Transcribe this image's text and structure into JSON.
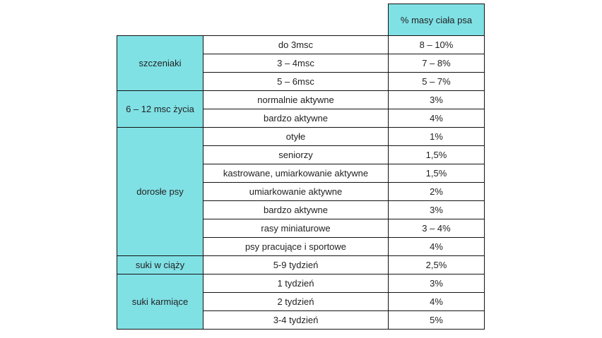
{
  "header": {
    "value_column": "% masy ciała psa"
  },
  "colors": {
    "group_cell": "#80e1e5",
    "border": "#111111"
  },
  "groups": [
    {
      "label": "szczeniaki",
      "rows": [
        {
          "condition": "do 3msc",
          "value": "8 – 10%"
        },
        {
          "condition": "3 – 4msc",
          "value": "7 – 8%"
        },
        {
          "condition": "5 – 6msc",
          "value": "5 – 7%"
        }
      ]
    },
    {
      "label": "6 – 12 msc życia",
      "rows": [
        {
          "condition": "normalnie aktywne",
          "value": "3%"
        },
        {
          "condition": "bardzo aktywne",
          "value": "4%"
        }
      ]
    },
    {
      "label": "dorosłe psy",
      "rows": [
        {
          "condition": "otyłe",
          "value": "1%"
        },
        {
          "condition": "seniorzy",
          "value": "1,5%"
        },
        {
          "condition": "kastrowane, umiarkowanie aktywne",
          "value": "1,5%"
        },
        {
          "condition": "umiarkowanie aktywne",
          "value": "2%"
        },
        {
          "condition": "bardzo aktywne",
          "value": "3%"
        },
        {
          "condition": "rasy miniaturowe",
          "value": "3 – 4%"
        },
        {
          "condition": "psy pracujące i sportowe",
          "value": "4%"
        }
      ]
    },
    {
      "label": "suki w ciąży",
      "rows": [
        {
          "condition": "5-9 tydzień",
          "value": "2,5%"
        }
      ]
    },
    {
      "label": "suki karmiące",
      "rows": [
        {
          "condition": "1 tydzień",
          "value": "3%"
        },
        {
          "condition": "2 tydzień",
          "value": "4%"
        },
        {
          "condition": "3-4 tydzień",
          "value": "5%"
        }
      ]
    }
  ]
}
